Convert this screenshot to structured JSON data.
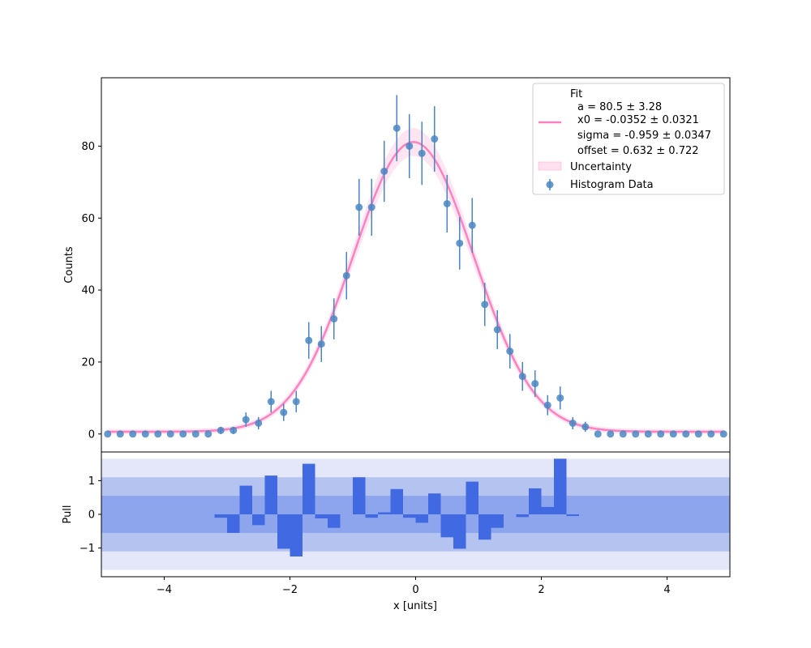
{
  "chart_data": [
    {
      "type": "scatter",
      "panel": "main",
      "title": "",
      "xlabel": "",
      "ylabel": "Counts",
      "xlim": [
        -5,
        5
      ],
      "ylim": [
        -5,
        99
      ],
      "yticks": [
        0,
        20,
        40,
        60,
        80
      ],
      "grid": false,
      "legend_position": "top-right",
      "series": [
        {
          "name": "Histogram Data",
          "x": [
            -4.9,
            -4.7,
            -4.5,
            -4.3,
            -4.1,
            -3.9,
            -3.7,
            -3.5,
            -3.3,
            -3.1,
            -2.9,
            -2.7,
            -2.5,
            -2.3,
            -2.1,
            -1.9,
            -1.7,
            -1.5,
            -1.3,
            -1.1,
            -0.9,
            -0.7,
            -0.5,
            -0.3,
            -0.1,
            0.1,
            0.3,
            0.5,
            0.7,
            0.9,
            1.1,
            1.3,
            1.5,
            1.7,
            1.9,
            2.1,
            2.3,
            2.5,
            2.7,
            2.9,
            3.1,
            3.3,
            3.5,
            3.7,
            3.9,
            4.1,
            4.3,
            4.5,
            4.7,
            4.9
          ],
          "y": [
            0,
            0,
            0,
            0,
            0,
            0,
            0,
            0,
            0,
            1,
            1,
            4,
            3,
            9,
            6,
            9,
            26,
            25,
            32,
            44,
            63,
            63,
            73,
            85,
            80,
            78,
            82,
            64,
            53,
            58,
            36,
            29,
            23,
            16,
            14,
            8,
            10,
            3,
            2,
            0,
            0,
            0,
            0,
            0,
            0,
            0,
            0,
            0,
            0,
            0
          ],
          "yerr": [
            0,
            0,
            0,
            0,
            0,
            0,
            0,
            0,
            0,
            1,
            1,
            2,
            1.7,
            3,
            2.4,
            3,
            5.1,
            5,
            5.7,
            6.6,
            7.9,
            7.9,
            8.5,
            9.2,
            8.9,
            8.8,
            9.1,
            8,
            7.3,
            7.6,
            6,
            5.4,
            4.8,
            4,
            3.7,
            2.8,
            3.2,
            1.7,
            1.4,
            0,
            0,
            0,
            0,
            0,
            0,
            0,
            0,
            0,
            0,
            0
          ],
          "color": "#4a86c2"
        },
        {
          "name": "Fit",
          "model": "a*exp(-(x-x0)^2/(2*sigma^2)) + offset",
          "params": {
            "a": 80.5,
            "x0": -0.0352,
            "sigma": -0.959,
            "offset": 0.632
          },
          "color": "#ff82c0"
        },
        {
          "name": "Uncertainty",
          "color": "#ff82c0"
        }
      ],
      "legend": {
        "fit_title": "Fit",
        "fit_lines": [
          "a = 80.5 ± 3.28",
          "x0 = -0.0352 ± 0.0321",
          "sigma = -0.959 ± 0.0347",
          "offset = 0.632 ± 0.722"
        ],
        "uncertainty": "Uncertainty",
        "data": "Histogram Data"
      }
    },
    {
      "type": "bar",
      "panel": "pull",
      "xlabel": "x [units]",
      "ylabel": "Pull",
      "xlim": [
        -5,
        5
      ],
      "ylim": [
        -1.85,
        1.85
      ],
      "xticks": [
        -4,
        -2,
        0,
        2,
        4
      ],
      "yticks": [
        -1,
        0,
        1
      ],
      "bands": [
        {
          "low": -1.65,
          "high": 1.65,
          "color": "#e3e7f9"
        },
        {
          "low": -1.1,
          "high": 1.1,
          "color": "#b4c3f0"
        },
        {
          "low": -0.55,
          "high": 0.55,
          "color": "#8ca5ec"
        }
      ],
      "color": "#4169e1",
      "x": [
        -4.9,
        -4.7,
        -4.5,
        -4.3,
        -4.1,
        -3.9,
        -3.7,
        -3.5,
        -3.3,
        -3.1,
        -2.9,
        -2.7,
        -2.5,
        -2.3,
        -2.1,
        -1.9,
        -1.7,
        -1.5,
        -1.3,
        -1.1,
        -0.9,
        -0.7,
        -0.5,
        -0.3,
        -0.1,
        0.1,
        0.3,
        0.5,
        0.7,
        0.9,
        1.1,
        1.3,
        1.5,
        1.7,
        1.9,
        2.1,
        2.3,
        2.5,
        2.7,
        2.9,
        3.1,
        3.3,
        3.5,
        3.7,
        3.9,
        4.1,
        4.3,
        4.5,
        4.7,
        4.9
      ],
      "values": [
        0,
        0,
        0,
        0,
        0,
        0,
        0,
        0,
        0,
        -0.1,
        -0.55,
        0.85,
        -0.32,
        1.15,
        -1.02,
        -1.25,
        1.5,
        -0.12,
        -0.4,
        0,
        1.1,
        -0.1,
        0.06,
        0.75,
        -0.1,
        -0.25,
        0.62,
        -0.68,
        -1.02,
        0.97,
        -0.75,
        -0.4,
        0,
        -0.08,
        0.77,
        0.22,
        1.65,
        -0.05,
        0,
        0,
        0,
        0,
        0,
        0,
        0,
        0,
        0,
        0,
        0,
        0
      ]
    }
  ]
}
